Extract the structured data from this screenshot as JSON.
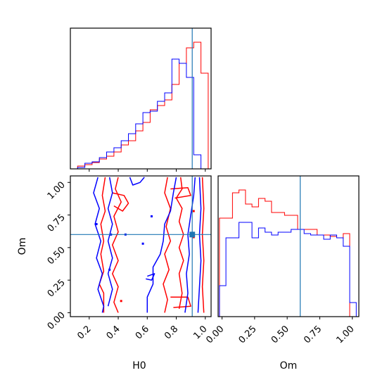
{
  "chart_data": {
    "type": "corner",
    "parameters": [
      "H0",
      "Om"
    ],
    "truth": {
      "H0": 0.91,
      "Om": 0.6
    },
    "colors": {
      "red": "#ff0000",
      "blue": "#0000ff",
      "truth": "#1f77b4",
      "axes": "#000000"
    },
    "axes": {
      "H0": {
        "label": "H0",
        "range": [
          0.07,
          1.04
        ],
        "ticks": [
          0.2,
          0.4,
          0.6,
          0.8,
          1.0
        ],
        "tick_labels": [
          "0.2",
          "0.4",
          "0.6",
          "0.8",
          "1.0"
        ]
      },
      "Om": {
        "label": "Om",
        "range": [
          -0.03,
          1.05
        ],
        "ticks": [
          0.0,
          0.25,
          0.5,
          0.75,
          1.0
        ],
        "tick_labels": [
          "0.00",
          "0.25",
          "0.50",
          "0.75",
          "1.00"
        ]
      }
    },
    "histograms": {
      "H0": {
        "bin_edges": [
          0.07,
          0.12,
          0.17,
          0.22,
          0.27,
          0.32,
          0.37,
          0.42,
          0.47,
          0.52,
          0.57,
          0.62,
          0.67,
          0.72,
          0.77,
          0.82,
          0.87,
          0.92,
          0.97,
          1.02
        ],
        "ylim": [
          0,
          200
        ],
        "series": [
          {
            "color": "red",
            "counts": [
              0,
              4,
              6,
              9,
              14,
              18,
              24,
              34,
              40,
              54,
              66,
              84,
              90,
              98,
              120,
              150,
              172,
              180,
              136
            ]
          },
          {
            "color": "blue",
            "counts": [
              0,
              2,
              8,
              10,
              16,
              24,
              30,
              40,
              50,
              64,
              80,
              82,
              96,
              108,
              156,
              150,
              130,
              20,
              0
            ]
          }
        ]
      },
      "Om": {
        "bin_edges": [
          -0.02,
          0.03,
          0.08,
          0.13,
          0.18,
          0.23,
          0.28,
          0.33,
          0.38,
          0.43,
          0.48,
          0.53,
          0.58,
          0.63,
          0.68,
          0.73,
          0.78,
          0.83,
          0.88,
          0.93,
          0.98,
          1.03
        ],
        "ylim": [
          0,
          1
        ],
        "series": [
          {
            "color": "red",
            "counts": [
              0.7,
              0.7,
              0.88,
              0.9,
              0.8,
              0.78,
              0.84,
              0.82,
              0.74,
              0.74,
              0.72,
              0.72,
              0.62,
              0.62,
              0.62,
              0.58,
              0.58,
              0.57,
              0.56,
              0.59,
              0.0
            ]
          },
          {
            "color": "blue",
            "counts": [
              0.22,
              0.56,
              0.56,
              0.67,
              0.67,
              0.56,
              0.63,
              0.6,
              0.58,
              0.6,
              0.6,
              0.62,
              0.62,
              0.59,
              0.58,
              0.58,
              0.55,
              0.58,
              0.56,
              0.5,
              0.1
            ]
          }
        ]
      }
    },
    "contours_2d": {
      "x": "H0",
      "y": "Om",
      "series": [
        {
          "color": "red",
          "paths": [
            [
              [
                0.3,
                0.0
              ],
              [
                0.3,
                0.15
              ],
              [
                0.27,
                0.22
              ],
              [
                0.3,
                0.32
              ],
              [
                0.28,
                0.45
              ],
              [
                0.3,
                0.55
              ],
              [
                0.28,
                0.68
              ],
              [
                0.31,
                0.78
              ],
              [
                0.29,
                0.9
              ],
              [
                0.31,
                1.04
              ]
            ],
            [
              [
                0.4,
                1.04
              ],
              [
                0.38,
                0.95
              ],
              [
                0.42,
                0.85
              ],
              [
                0.37,
                0.74
              ],
              [
                0.4,
                0.62
              ],
              [
                0.36,
                0.52
              ],
              [
                0.4,
                0.4
              ],
              [
                0.36,
                0.3
              ],
              [
                0.4,
                0.2
              ],
              [
                0.37,
                0.08
              ],
              [
                0.4,
                0.0
              ]
            ],
            [
              [
                0.36,
                0.92
              ],
              [
                0.44,
                0.9
              ],
              [
                0.47,
                0.84
              ],
              [
                0.43,
                0.78
              ],
              [
                0.37,
                0.82
              ]
            ],
            [
              [
                0.74,
                1.04
              ],
              [
                0.72,
                0.92
              ],
              [
                0.76,
                0.8
              ],
              [
                0.73,
                0.66
              ],
              [
                0.76,
                0.55
              ],
              [
                0.72,
                0.45
              ],
              [
                0.75,
                0.33
              ],
              [
                0.71,
                0.22
              ],
              [
                0.74,
                0.1
              ],
              [
                0.72,
                0.0
              ]
            ],
            [
              [
                0.83,
                1.04
              ],
              [
                0.84,
                0.95
              ],
              [
                0.8,
                0.88
              ],
              [
                0.84,
                0.8
              ],
              [
                0.82,
                0.7
              ],
              [
                0.85,
                0.6
              ],
              [
                0.82,
                0.5
              ],
              [
                0.85,
                0.4
              ],
              [
                0.82,
                0.3
              ],
              [
                0.84,
                0.15
              ],
              [
                0.82,
                0.03
              ]
            ],
            [
              [
                0.98,
                1.04
              ],
              [
                0.99,
                0.8
              ],
              [
                0.98,
                0.6
              ],
              [
                0.99,
                0.4
              ],
              [
                0.98,
                0.2
              ],
              [
                0.99,
                0.0
              ]
            ],
            [
              [
                0.76,
                0.95
              ],
              [
                0.88,
                0.96
              ],
              [
                0.9,
                0.9
              ],
              [
                0.79,
                0.88
              ]
            ],
            [
              [
                0.76,
                0.12
              ],
              [
                0.88,
                0.12
              ],
              [
                0.9,
                0.05
              ],
              [
                0.78,
                0.04
              ]
            ]
          ]
        },
        {
          "color": "blue",
          "paths": [
            [
              [
                0.26,
                1.04
              ],
              [
                0.23,
                0.92
              ],
              [
                0.27,
                0.8
              ],
              [
                0.24,
                0.68
              ],
              [
                0.28,
                0.55
              ],
              [
                0.25,
                0.42
              ],
              [
                0.29,
                0.3
              ],
              [
                0.26,
                0.18
              ],
              [
                0.3,
                0.05
              ],
              [
                0.29,
                0.0
              ]
            ],
            [
              [
                0.34,
                1.04
              ],
              [
                0.36,
                0.92
              ],
              [
                0.33,
                0.8
              ],
              [
                0.36,
                0.68
              ],
              [
                0.33,
                0.55
              ],
              [
                0.36,
                0.42
              ],
              [
                0.33,
                0.3
              ],
              [
                0.36,
                0.18
              ],
              [
                0.33,
                0.05
              ]
            ],
            [
              [
                0.48,
                1.04
              ],
              [
                0.5,
                0.98
              ],
              [
                0.55,
                1.0
              ],
              [
                0.58,
                1.04
              ]
            ],
            [
              [
                0.6,
                0.0
              ],
              [
                0.6,
                0.12
              ],
              [
                0.64,
                0.22
              ],
              [
                0.64,
                0.35
              ],
              [
                0.69,
                0.45
              ],
              [
                0.71,
                0.55
              ],
              [
                0.72,
                0.68
              ],
              [
                0.76,
                0.78
              ],
              [
                0.78,
                0.92
              ],
              [
                0.8,
                1.04
              ]
            ],
            [
              [
                0.86,
                0.0
              ],
              [
                0.88,
                0.15
              ],
              [
                0.87,
                0.3
              ],
              [
                0.89,
                0.45
              ],
              [
                0.88,
                0.6
              ],
              [
                0.9,
                0.75
              ],
              [
                0.92,
                0.9
              ],
              [
                0.93,
                1.04
              ]
            ],
            [
              [
                0.95,
                0.0
              ],
              [
                0.96,
                0.2
              ],
              [
                0.97,
                0.4
              ],
              [
                0.96,
                0.6
              ],
              [
                0.97,
                0.8
              ],
              [
                0.96,
                1.04
              ]
            ],
            [
              [
                0.6,
                0.28
              ],
              [
                0.65,
                0.3
              ],
              [
                0.63,
                0.25
              ],
              [
                0.59,
                0.26
              ]
            ]
          ]
        }
      ],
      "markers": [
        {
          "color": "blue",
          "x": 0.35,
          "y": 0.6
        },
        {
          "color": "blue",
          "x": 0.34,
          "y": 0.33
        },
        {
          "color": "blue",
          "x": 0.25,
          "y": 0.68
        },
        {
          "color": "blue",
          "x": 0.45,
          "y": 0.6
        },
        {
          "color": "blue",
          "x": 0.57,
          "y": 0.53
        },
        {
          "color": "blue",
          "x": 0.63,
          "y": 0.74
        },
        {
          "color": "red",
          "x": 0.42,
          "y": 0.09
        },
        {
          "color": "red",
          "x": 0.92,
          "y": 0.78
        },
        {
          "color": "red",
          "x": 0.92,
          "y": 0.58
        }
      ]
    }
  }
}
